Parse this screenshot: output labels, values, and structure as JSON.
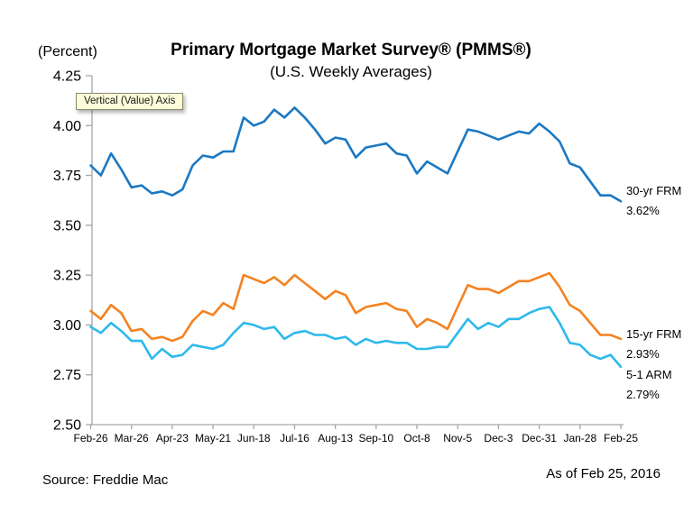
{
  "header": {
    "percent_label": "(Percent)",
    "title": "Primary Mortgage Market Survey® (PMMS®)",
    "subtitle": "(U.S. Weekly Averages)"
  },
  "tooltip": {
    "text": "Vertical (Value) Axis"
  },
  "footer": {
    "source": "Source: Freddie Mac",
    "as_of": "As of Feb 25, 2016"
  },
  "annotations": [
    {
      "name": "30-yr FRM",
      "value": "3.62%"
    },
    {
      "name": "15-yr FRM",
      "value": "2.93%"
    },
    {
      "name": "5-1 ARM",
      "value": "2.79%"
    }
  ],
  "colors": {
    "frm30": "#1B78C2",
    "frm15": "#F58220",
    "arm51": "#2EB9EC",
    "axis": "#A6A6A6",
    "text": "#000000",
    "tooltip_bg": "#FCFCD9"
  },
  "chart_data": {
    "type": "line",
    "title": "Primary Mortgage Market Survey® (PMMS®)",
    "subtitle": "(U.S. Weekly Averages)",
    "ylabel": "(Percent)",
    "ylim": [
      2.5,
      4.25
    ],
    "ytick_labels": [
      "4.25",
      "4.00",
      "3.75",
      "3.50",
      "3.25",
      "3.00",
      "2.75",
      "2.50"
    ],
    "xtick_labels": [
      "Feb-26",
      "Mar-26",
      "Apr-23",
      "May-21",
      "Jun-18",
      "Jul-16",
      "Aug-13",
      "Sep-10",
      "Oct-8",
      "Nov-5",
      "Dec-3",
      "Dec-31",
      "Jan-28",
      "Feb-25"
    ],
    "weeks_per_xtick": 4,
    "grid": false,
    "legend_position": "right-of-line-ends",
    "series": [
      {
        "name": "30-yr FRM",
        "end_label": "3.62%",
        "color": "#1B78C2",
        "values": [
          3.8,
          3.75,
          3.86,
          3.78,
          3.69,
          3.7,
          3.66,
          3.67,
          3.65,
          3.68,
          3.8,
          3.85,
          3.84,
          3.87,
          3.87,
          4.04,
          4.0,
          4.02,
          4.08,
          4.04,
          4.09,
          4.04,
          3.98,
          3.91,
          3.94,
          3.93,
          3.84,
          3.89,
          3.9,
          3.91,
          3.86,
          3.85,
          3.76,
          3.82,
          3.79,
          3.76,
          3.87,
          3.98,
          3.97,
          3.95,
          3.93,
          3.95,
          3.97,
          3.96,
          4.01,
          3.97,
          3.92,
          3.81,
          3.79,
          3.72,
          3.65,
          3.65,
          3.62
        ]
      },
      {
        "name": "15-yr FRM",
        "end_label": "2.93%",
        "color": "#F58220",
        "values": [
          3.07,
          3.03,
          3.1,
          3.06,
          2.97,
          2.98,
          2.93,
          2.94,
          2.92,
          2.94,
          3.02,
          3.07,
          3.05,
          3.11,
          3.08,
          3.25,
          3.23,
          3.21,
          3.24,
          3.2,
          3.25,
          3.21,
          3.17,
          3.13,
          3.17,
          3.15,
          3.06,
          3.09,
          3.1,
          3.11,
          3.08,
          3.07,
          2.99,
          3.03,
          3.01,
          2.98,
          3.09,
          3.2,
          3.18,
          3.18,
          3.16,
          3.19,
          3.22,
          3.22,
          3.24,
          3.26,
          3.19,
          3.1,
          3.07,
          3.01,
          2.95,
          2.95,
          2.93
        ]
      },
      {
        "name": "5-1 ARM",
        "end_label": "2.79%",
        "color": "#2EB9EC",
        "values": [
          2.99,
          2.96,
          3.01,
          2.97,
          2.92,
          2.92,
          2.83,
          2.88,
          2.84,
          2.85,
          2.9,
          2.89,
          2.88,
          2.9,
          2.96,
          3.01,
          3.0,
          2.98,
          2.99,
          2.93,
          2.96,
          2.97,
          2.95,
          2.95,
          2.93,
          2.94,
          2.9,
          2.93,
          2.91,
          2.92,
          2.91,
          2.91,
          2.88,
          2.88,
          2.89,
          2.89,
          2.96,
          3.03,
          2.98,
          3.01,
          2.99,
          3.03,
          3.03,
          3.06,
          3.08,
          3.09,
          3.01,
          2.91,
          2.9,
          2.85,
          2.83,
          2.85,
          2.79
        ]
      }
    ]
  }
}
